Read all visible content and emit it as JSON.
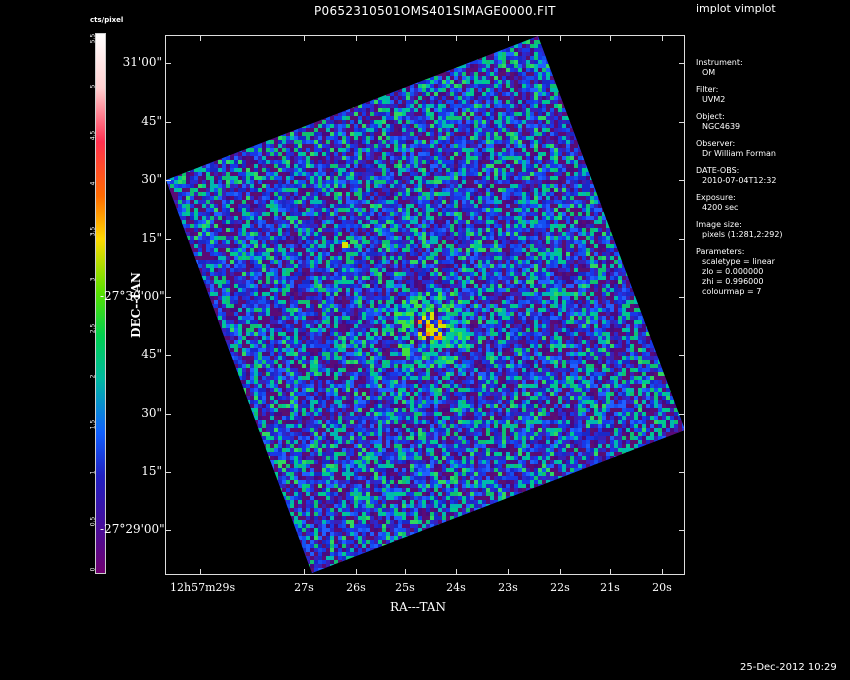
{
  "title": "P0652310501OMS401SIMAGE0000.FIT",
  "program": "implot vimplot",
  "timestamp": "25-Dec-2012 10:29",
  "colorbar": {
    "label": "cts/pixel",
    "ticks": [
      "0",
      "0.5",
      "1",
      "1.5",
      "2",
      "2.5",
      "3",
      "3.5",
      "4",
      "4.5",
      "5",
      "5.5"
    ]
  },
  "axes": {
    "xlabel": "RA---TAN",
    "ylabel": "DEC--TAN",
    "yticks": [
      "31'00\"",
      "45\"",
      "30\"",
      "15\"",
      "-27°30'00\"",
      "45\"",
      "30\"",
      "15\"",
      "-27°29'00\""
    ],
    "xticks": [
      "12h57m29s",
      "27s",
      "26s",
      "25s",
      "24s",
      "23s",
      "22s",
      "21s",
      "20s"
    ]
  },
  "info": [
    {
      "key": "Instrument:",
      "value": "OM"
    },
    {
      "key": "Filter:",
      "value": "UVM2"
    },
    {
      "key": "Object:",
      "value": "NGC4639"
    },
    {
      "key": "Observer:",
      "value": "Dr William Forman"
    },
    {
      "key": "DATE-OBS:",
      "value": "2010-07-04T12:32"
    },
    {
      "key": "Exposure:",
      "value": "4200 sec"
    },
    {
      "key": "Image size:",
      "value": "pixels (1:281,2:292)"
    },
    {
      "key": "Parameters:",
      "value": "scaletype = linear"
    },
    {
      "key": "",
      "value": "zlo = 0.000000"
    },
    {
      "key": "",
      "value": "zhi = 0.996000"
    },
    {
      "key": "",
      "value": "colourmap =  7"
    }
  ]
}
